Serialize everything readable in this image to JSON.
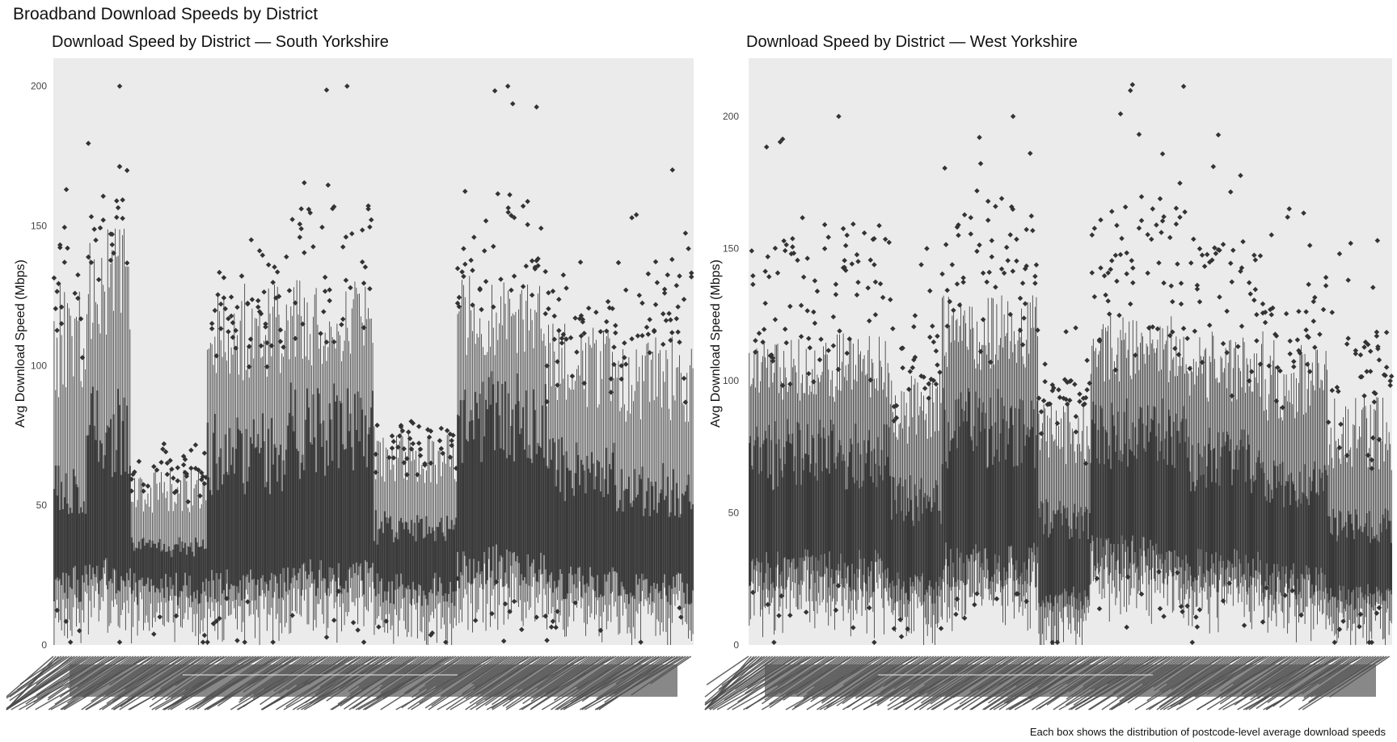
{
  "figure": {
    "title": "Broadband Download Speeds by District",
    "caption": "Each box shows the distribution of postcode-level average download speeds"
  },
  "chart_data": [
    {
      "type": "box",
      "title": "Download Speed by District — South Yorkshire",
      "xlabel": "",
      "ylabel": "Avg Download Speed (Mbps)",
      "ylim": [
        0,
        210
      ],
      "yticks": [
        0,
        50,
        100,
        150,
        200
      ],
      "grid": false,
      "panel_background": "#ebebeb",
      "box_color": "#333333",
      "category_labels_legible": false,
      "n_boxes": 430,
      "segments": [
        {
          "from": 0.0,
          "to": 0.05,
          "median": 33,
          "q1": 22,
          "q3": 55,
          "whisker_high": 110,
          "outlier_max": 163
        },
        {
          "from": 0.05,
          "to": 0.12,
          "median": 38,
          "q1": 24,
          "q3": 78,
          "whisker_high": 130,
          "outlier_max": 200
        },
        {
          "from": 0.12,
          "to": 0.24,
          "median": 27,
          "q1": 20,
          "q3": 35,
          "whisker_high": 55,
          "outlier_max": 72
        },
        {
          "from": 0.24,
          "to": 0.36,
          "median": 33,
          "q1": 22,
          "q3": 68,
          "whisker_high": 112,
          "outlier_max": 145
        },
        {
          "from": 0.36,
          "to": 0.5,
          "median": 36,
          "q1": 24,
          "q3": 76,
          "whisker_high": 115,
          "outlier_max": 200
        },
        {
          "from": 0.5,
          "to": 0.63,
          "median": 28,
          "q1": 20,
          "q3": 42,
          "whisker_high": 68,
          "outlier_max": 80
        },
        {
          "from": 0.63,
          "to": 0.77,
          "median": 44,
          "q1": 28,
          "q3": 82,
          "whisker_high": 118,
          "outlier_max": 200
        },
        {
          "from": 0.77,
          "to": 0.88,
          "median": 34,
          "q1": 22,
          "q3": 62,
          "whisker_high": 100,
          "outlier_max": 137
        },
        {
          "from": 0.88,
          "to": 1.0,
          "median": 32,
          "q1": 20,
          "q3": 55,
          "whisker_high": 95,
          "outlier_max": 170
        }
      ]
    },
    {
      "type": "box",
      "title": "Download Speed by District — West Yorkshire",
      "xlabel": "",
      "ylabel": "Avg Download Speed (Mbps)",
      "ylim": [
        0,
        222
      ],
      "yticks": [
        0,
        50,
        100,
        150,
        200
      ],
      "grid": false,
      "panel_background": "#ebebeb",
      "box_color": "#333333",
      "category_labels_legible": false,
      "n_boxes": 520,
      "segments": [
        {
          "from": 0.0,
          "to": 0.22,
          "median": 42,
          "q1": 28,
          "q3": 72,
          "whisker_high": 105,
          "outlier_max": 200
        },
        {
          "from": 0.22,
          "to": 0.3,
          "median": 32,
          "q1": 22,
          "q3": 55,
          "whisker_high": 90,
          "outlier_max": 150
        },
        {
          "from": 0.3,
          "to": 0.45,
          "median": 48,
          "q1": 30,
          "q3": 82,
          "whisker_high": 118,
          "outlier_max": 200
        },
        {
          "from": 0.45,
          "to": 0.53,
          "median": 30,
          "q1": 18,
          "q3": 48,
          "whisker_high": 80,
          "outlier_max": 120
        },
        {
          "from": 0.53,
          "to": 0.68,
          "median": 50,
          "q1": 32,
          "q3": 80,
          "whisker_high": 112,
          "outlier_max": 212
        },
        {
          "from": 0.68,
          "to": 0.8,
          "median": 42,
          "q1": 28,
          "q3": 70,
          "whisker_high": 105,
          "outlier_max": 193
        },
        {
          "from": 0.8,
          "to": 0.9,
          "median": 38,
          "q1": 24,
          "q3": 60,
          "whisker_high": 100,
          "outlier_max": 165
        },
        {
          "from": 0.9,
          "to": 1.0,
          "median": 30,
          "q1": 18,
          "q3": 45,
          "whisker_high": 80,
          "outlier_max": 153
        }
      ]
    }
  ]
}
